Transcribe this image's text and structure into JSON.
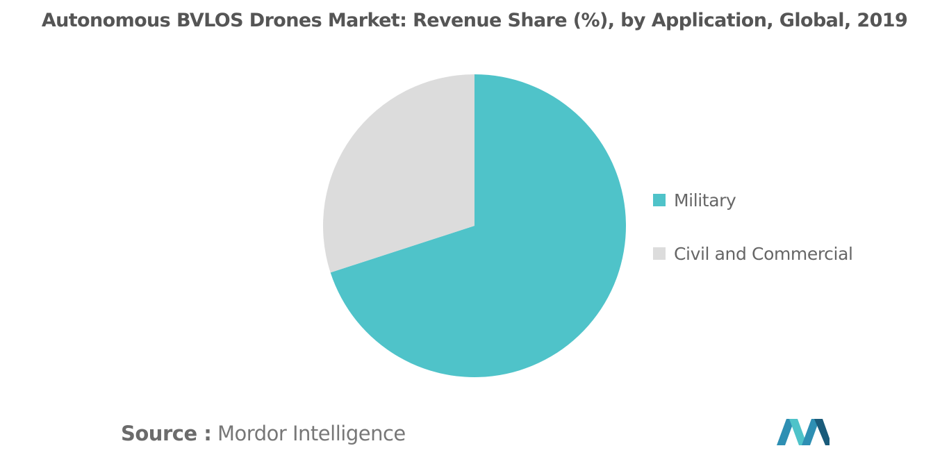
{
  "chart_data": {
    "type": "pie",
    "title": "Autonomous BVLOS Drones Market: Revenue Share (%), by Application, Global, 2019",
    "slices": [
      {
        "name": "Military",
        "value": 70,
        "color": "#4fc3c9"
      },
      {
        "name": "Civil and Commercial",
        "value": 30,
        "color": "#dcdcdc"
      }
    ],
    "start_angle": "12 o'clock",
    "direction": "clockwise",
    "legend_position": "right",
    "data_labels": false
  },
  "source": {
    "prefix": "Source :",
    "name": "Mordor Intelligence"
  },
  "logo": {
    "icon": "mordor-intelligence-logo-icon",
    "colors": [
      "#2e8fb3",
      "#4fc3c9",
      "#1a5b7a"
    ]
  }
}
